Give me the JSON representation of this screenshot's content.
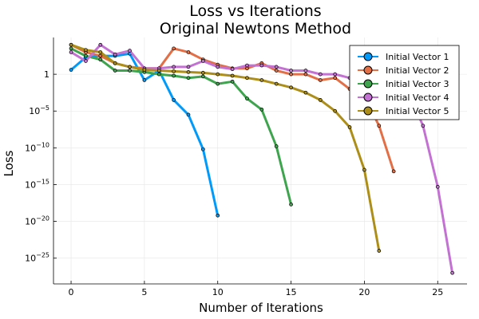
{
  "chart_data": {
    "type": "line",
    "title": "Loss vs Iterations",
    "subtitle": "Original Newtons Method",
    "xlabel": "Number of Iterations",
    "ylabel": "Loss",
    "xlim": [
      -1.2,
      27
    ],
    "ylim_log10": [
      -28.5,
      5
    ],
    "log_y": true,
    "grid": true,
    "legend_position": "top-right",
    "x_ticks": [
      0,
      5,
      10,
      15,
      20,
      25
    ],
    "x_tick_labels": [
      "0",
      "5",
      "10",
      "15",
      "20",
      "25"
    ],
    "y_ticks_log10": [
      0,
      -5,
      -10,
      -15,
      -20,
      -25
    ],
    "y_tick_labels": [
      {
        "base": "1",
        "exp": "0",
        "is_one": true
      },
      {
        "base": "10",
        "exp": "−5"
      },
      {
        "base": "10",
        "exp": "−10"
      },
      {
        "base": "10",
        "exp": "−15"
      },
      {
        "base": "10",
        "exp": "−20"
      },
      {
        "base": "10",
        "exp": "−25"
      }
    ],
    "series": [
      {
        "name": "Initial Vector 1",
        "color": "#009AFA",
        "x": [
          0,
          1,
          2,
          3,
          4,
          5,
          6,
          7,
          8,
          9,
          10
        ],
        "log10_y": [
          0.6,
          2.3,
          2.5,
          2.5,
          2.8,
          -0.8,
          0.5,
          -3.5,
          -5.5,
          -10.2,
          -19.2
        ]
      },
      {
        "name": "Initial Vector 2",
        "color": "#E36F47",
        "x": [
          0,
          1,
          2,
          3,
          4,
          5,
          6,
          7,
          8,
          9,
          10,
          11,
          12,
          13,
          14,
          15,
          16,
          17,
          18,
          19,
          20,
          21,
          22
        ],
        "log10_y": [
          4.0,
          3.0,
          2.5,
          1.5,
          1.0,
          0.8,
          0.8,
          3.5,
          3.0,
          2.0,
          1.3,
          0.8,
          0.8,
          1.5,
          0.5,
          0.0,
          0.0,
          -0.8,
          -0.5,
          -2.0,
          -3.0,
          -7.0,
          -13.2
        ]
      },
      {
        "name": "Initial Vector 3",
        "color": "#3EA44E",
        "x": [
          0,
          1,
          2,
          3,
          4,
          5,
          6,
          7,
          8,
          9,
          10,
          11,
          12,
          13,
          14,
          15
        ],
        "log10_y": [
          3.5,
          2.5,
          2.0,
          0.5,
          0.5,
          0.3,
          0.0,
          -0.2,
          -0.5,
          -0.3,
          -1.3,
          -1.0,
          -3.3,
          -4.8,
          -9.8,
          -17.7
        ]
      },
      {
        "name": "Initial Vector 4",
        "color": "#C371D2",
        "x": [
          0,
          1,
          2,
          3,
          4,
          5,
          6,
          7,
          8,
          9,
          10,
          11,
          12,
          13,
          14,
          15,
          16,
          17,
          18,
          19,
          20,
          21,
          22,
          23,
          24,
          25,
          26
        ],
        "log10_y": [
          3.0,
          1.8,
          4.0,
          2.7,
          3.2,
          0.8,
          0.8,
          1.0,
          1.0,
          1.8,
          1.0,
          0.7,
          1.2,
          1.2,
          1.0,
          0.5,
          0.5,
          0.0,
          0.0,
          -0.5,
          -0.8,
          -1.3,
          -2.0,
          -2.5,
          -7.0,
          -15.3,
          -27.0
        ]
      },
      {
        "name": "Initial Vector 5",
        "color": "#AC8E18",
        "x": [
          0,
          1,
          2,
          3,
          4,
          5,
          6,
          7,
          8,
          9,
          10,
          11,
          12,
          13,
          14,
          15,
          16,
          17,
          18,
          19,
          20,
          21
        ],
        "log10_y": [
          4.0,
          3.3,
          3.0,
          1.5,
          1.0,
          0.6,
          0.5,
          0.4,
          0.3,
          0.2,
          0.0,
          -0.2,
          -0.5,
          -0.8,
          -1.3,
          -1.8,
          -2.5,
          -3.5,
          -5.0,
          -7.2,
          -13.0,
          -24.0
        ]
      }
    ]
  }
}
